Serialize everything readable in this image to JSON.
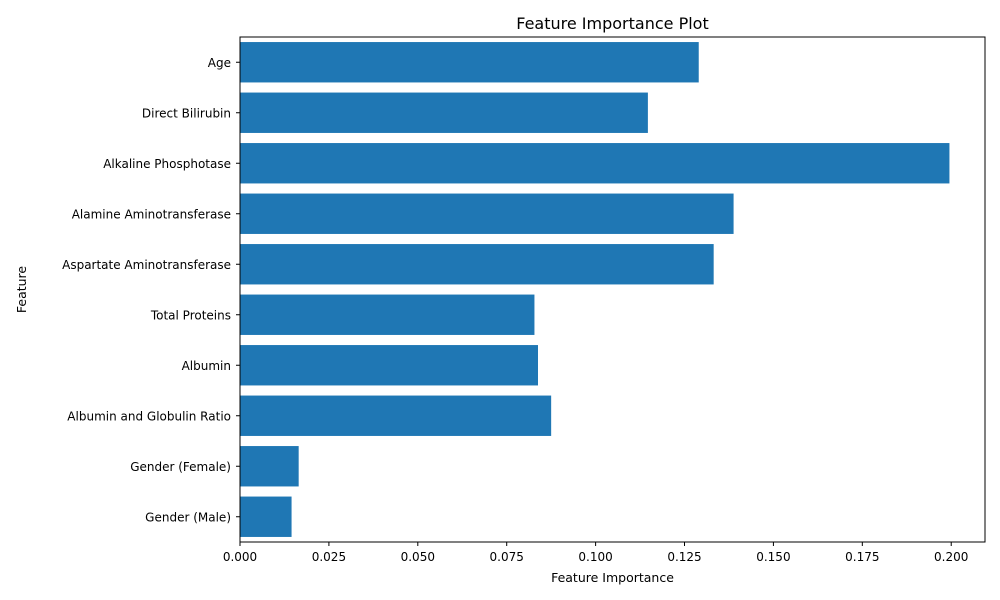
{
  "chart_data": {
    "type": "bar",
    "orientation": "horizontal",
    "title": "Feature Importance Plot",
    "xlabel": "Feature Importance",
    "ylabel": "Feature",
    "categories": [
      "Gender (Male)",
      "Gender (Female)",
      "Albumin and Globulin Ratio",
      "Albumin",
      "Total Proteins",
      "Aspartate Aminotransferase",
      "Alamine Aminotransferase",
      "Alkaline Phosphotase",
      "Direct Bilirubin",
      "Age"
    ],
    "values": [
      0.0145,
      0.0165,
      0.0875,
      0.0838,
      0.0828,
      0.1332,
      0.1388,
      0.1995,
      0.1147,
      0.129
    ],
    "xlim": [
      0,
      0.2095
    ],
    "xticks": [
      "0.000",
      "0.025",
      "0.050",
      "0.075",
      "0.100",
      "0.125",
      "0.150",
      "0.175",
      "0.200"
    ],
    "grid": false,
    "bar_color": "#1f77b4"
  }
}
